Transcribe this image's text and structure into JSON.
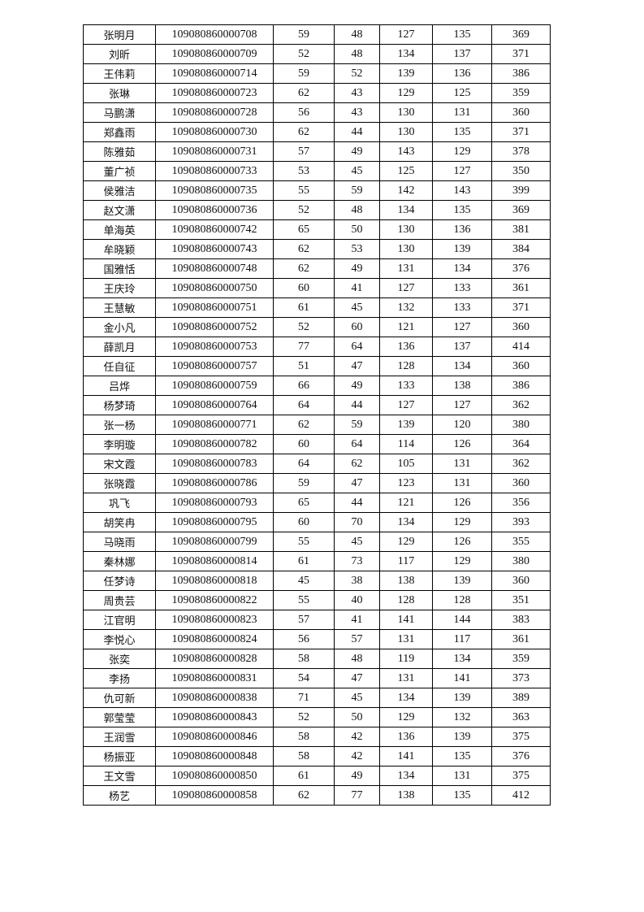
{
  "rows": [
    [
      "张明月",
      "109080860000708",
      "59",
      "48",
      "127",
      "135",
      "369"
    ],
    [
      "刘昕",
      "109080860000709",
      "52",
      "48",
      "134",
      "137",
      "371"
    ],
    [
      "王伟莉",
      "109080860000714",
      "59",
      "52",
      "139",
      "136",
      "386"
    ],
    [
      "张琳",
      "109080860000723",
      "62",
      "43",
      "129",
      "125",
      "359"
    ],
    [
      "马鹏潇",
      "109080860000728",
      "56",
      "43",
      "130",
      "131",
      "360"
    ],
    [
      "郑鑫雨",
      "109080860000730",
      "62",
      "44",
      "130",
      "135",
      "371"
    ],
    [
      "陈雅茹",
      "109080860000731",
      "57",
      "49",
      "143",
      "129",
      "378"
    ],
    [
      "董广祯",
      "109080860000733",
      "53",
      "45",
      "125",
      "127",
      "350"
    ],
    [
      "侯雅洁",
      "109080860000735",
      "55",
      "59",
      "142",
      "143",
      "399"
    ],
    [
      "赵文潇",
      "109080860000736",
      "52",
      "48",
      "134",
      "135",
      "369"
    ],
    [
      "单海英",
      "109080860000742",
      "65",
      "50",
      "130",
      "136",
      "381"
    ],
    [
      "牟晓颖",
      "109080860000743",
      "62",
      "53",
      "130",
      "139",
      "384"
    ],
    [
      "国雅恬",
      "109080860000748",
      "62",
      "49",
      "131",
      "134",
      "376"
    ],
    [
      "王庆玲",
      "109080860000750",
      "60",
      "41",
      "127",
      "133",
      "361"
    ],
    [
      "王慧敏",
      "109080860000751",
      "61",
      "45",
      "132",
      "133",
      "371"
    ],
    [
      "金小凡",
      "109080860000752",
      "52",
      "60",
      "121",
      "127",
      "360"
    ],
    [
      "薛凯月",
      "109080860000753",
      "77",
      "64",
      "136",
      "137",
      "414"
    ],
    [
      "任自征",
      "109080860000757",
      "51",
      "47",
      "128",
      "134",
      "360"
    ],
    [
      "吕烨",
      "109080860000759",
      "66",
      "49",
      "133",
      "138",
      "386"
    ],
    [
      "杨梦琦",
      "109080860000764",
      "64",
      "44",
      "127",
      "127",
      "362"
    ],
    [
      "张一杨",
      "109080860000771",
      "62",
      "59",
      "139",
      "120",
      "380"
    ],
    [
      "李明璇",
      "109080860000782",
      "60",
      "64",
      "114",
      "126",
      "364"
    ],
    [
      "宋文霞",
      "109080860000783",
      "64",
      "62",
      "105",
      "131",
      "362"
    ],
    [
      "张晓霞",
      "109080860000786",
      "59",
      "47",
      "123",
      "131",
      "360"
    ],
    [
      "巩飞",
      "109080860000793",
      "65",
      "44",
      "121",
      "126",
      "356"
    ],
    [
      "胡笑冉",
      "109080860000795",
      "60",
      "70",
      "134",
      "129",
      "393"
    ],
    [
      "马晓雨",
      "109080860000799",
      "55",
      "45",
      "129",
      "126",
      "355"
    ],
    [
      "秦林娜",
      "109080860000814",
      "61",
      "73",
      "117",
      "129",
      "380"
    ],
    [
      "任梦诗",
      "109080860000818",
      "45",
      "38",
      "138",
      "139",
      "360"
    ],
    [
      "周贵芸",
      "109080860000822",
      "55",
      "40",
      "128",
      "128",
      "351"
    ],
    [
      "江官明",
      "109080860000823",
      "57",
      "41",
      "141",
      "144",
      "383"
    ],
    [
      "李悦心",
      "109080860000824",
      "56",
      "57",
      "131",
      "117",
      "361"
    ],
    [
      "张奕",
      "109080860000828",
      "58",
      "48",
      "119",
      "134",
      "359"
    ],
    [
      "李扬",
      "109080860000831",
      "54",
      "47",
      "131",
      "141",
      "373"
    ],
    [
      "仇可新",
      "109080860000838",
      "71",
      "45",
      "134",
      "139",
      "389"
    ],
    [
      "郭莹莹",
      "109080860000843",
      "52",
      "50",
      "129",
      "132",
      "363"
    ],
    [
      "王润雪",
      "109080860000846",
      "58",
      "42",
      "136",
      "139",
      "375"
    ],
    [
      "杨振亚",
      "109080860000848",
      "58",
      "42",
      "141",
      "135",
      "376"
    ],
    [
      "王文雪",
      "109080860000850",
      "61",
      "49",
      "134",
      "131",
      "375"
    ],
    [
      "杨艺",
      "109080860000858",
      "62",
      "77",
      "138",
      "135",
      "412"
    ]
  ]
}
